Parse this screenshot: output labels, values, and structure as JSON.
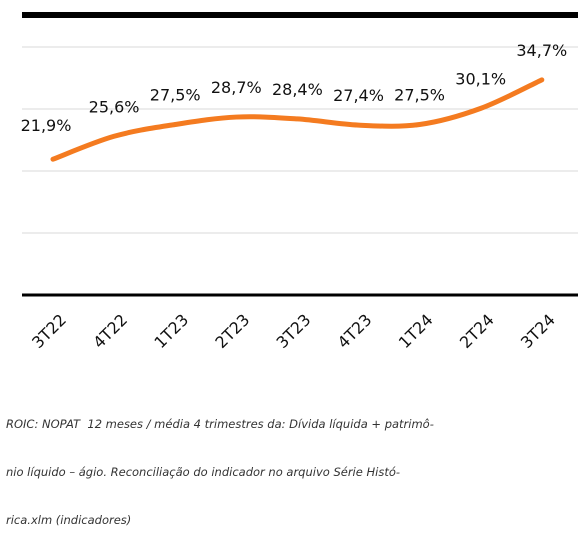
{
  "chart_data": {
    "type": "line",
    "categories": [
      "3T22",
      "4T22",
      "1T23",
      "2T23",
      "3T23",
      "4T23",
      "1T24",
      "2T24",
      "3T24"
    ],
    "series": [
      {
        "name": "ROIC",
        "color": "#f47b20",
        "values": [
          21.9,
          25.6,
          27.5,
          28.7,
          28.4,
          27.4,
          27.5,
          30.1,
          34.7
        ],
        "value_labels": [
          "21,9%",
          "25,6%",
          "27,5%",
          "28,7%",
          "28,4%",
          "27,4%",
          "27,5%",
          "30,1%",
          "34,7%"
        ]
      }
    ],
    "ylim": [
      0,
      45
    ],
    "yticks": [
      0,
      10,
      20,
      30,
      40
    ],
    "grid": true,
    "footnote": [
      "ROIC: NOPAT  12 meses / média 4 trimestres da: Dívida líquida + patrimô-",
      "nio líquido – ágio. Reconciliação do indicador no arquivo Série Histó-",
      "rica.xlm (indicadores)"
    ]
  }
}
